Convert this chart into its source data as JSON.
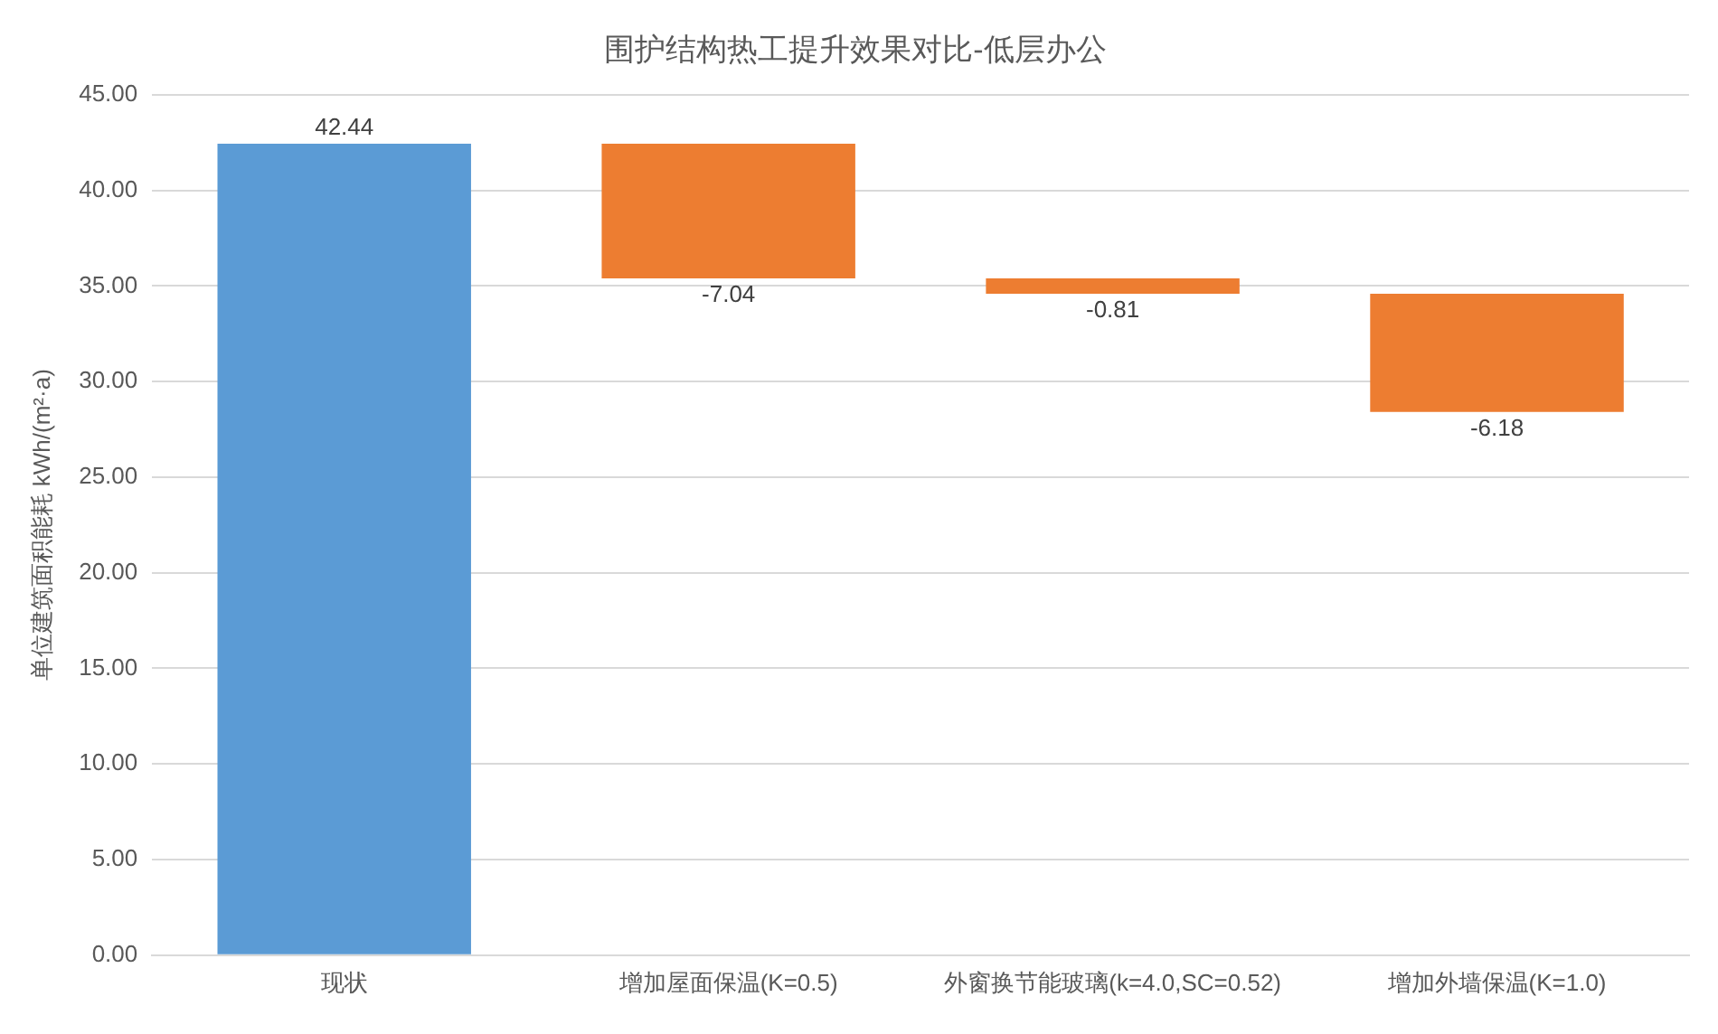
{
  "chart_data": {
    "type": "bar",
    "title": "围护结构热工提升效果对比-低层办公",
    "ylabel": "单位建筑面积能耗 kWh/(m²·a)",
    "categories": [
      "现状",
      "增加屋面保温(K=0.5)",
      "外窗换节能玻璃(k=4.0,SC=0.52)",
      "增加外墙保温(K=1.0)"
    ],
    "values": [
      42.44,
      -7.04,
      -0.81,
      -6.18
    ],
    "base": [
      0,
      42.44,
      35.4,
      34.59
    ],
    "colors": [
      "#5b9bd5",
      "#ed7d31",
      "#ed7d31",
      "#ed7d31"
    ],
    "ylim": [
      0,
      45
    ],
    "yticks": [
      {
        "value": 0,
        "label": "0.00"
      },
      {
        "value": 5,
        "label": "5.00"
      },
      {
        "value": 10,
        "label": "10.00"
      },
      {
        "value": 15,
        "label": "15.00"
      },
      {
        "value": 20,
        "label": "20.00"
      },
      {
        "value": 25,
        "label": "25.00"
      },
      {
        "value": 30,
        "label": "30.00"
      },
      {
        "value": 35,
        "label": "35.00"
      },
      {
        "value": 40,
        "label": "40.00"
      },
      {
        "value": 45,
        "label": "45.00"
      }
    ],
    "grid": "y",
    "data_labels": true,
    "legend": false
  }
}
